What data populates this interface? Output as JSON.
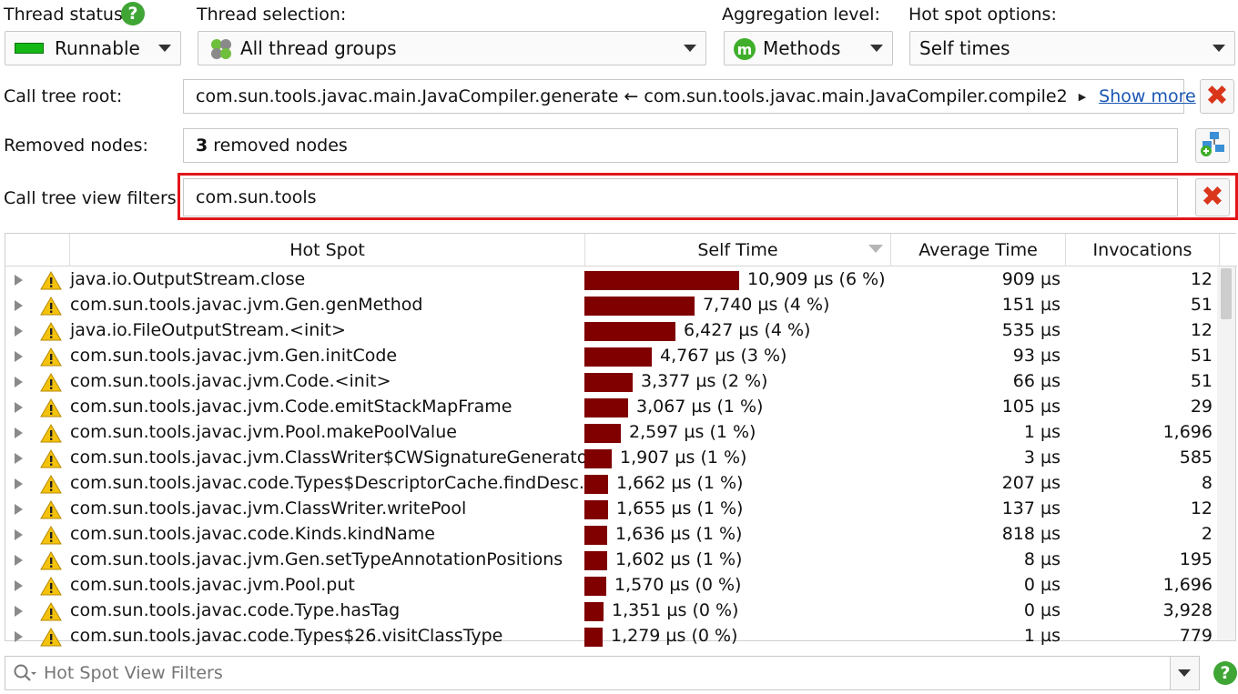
{
  "toolbar": {
    "thread_status": {
      "label": "Thread status:",
      "value": "Runnable"
    },
    "thread_selection": {
      "label": "Thread selection:",
      "value": "All thread groups"
    },
    "aggregation": {
      "label": "Aggregation level:",
      "value": "Methods"
    },
    "hotspot_options": {
      "label": "Hot spot options:",
      "value": "Self times"
    }
  },
  "call_tree_root": {
    "label": "Call tree root:",
    "value": "com.sun.tools.javac.main.JavaCompiler.generate ← com.sun.tools.javac.main.JavaCompiler.compile2",
    "show_more": "Show more"
  },
  "removed_nodes": {
    "label": "Removed nodes:",
    "count": "3",
    "suffix": "removed nodes"
  },
  "view_filters": {
    "label": "Call tree view filters:",
    "value": "com.sun.tools"
  },
  "table": {
    "columns": [
      "Hot Spot",
      "Self Time",
      "Average Time",
      "Invocations"
    ],
    "sort_column": "Self Time",
    "rows": [
      {
        "name": "java.io.OutputStream.close",
        "self_time": "10,909 µs (6 %)",
        "self_us": 10909,
        "avg": "909 µs",
        "inv": "12"
      },
      {
        "name": "com.sun.tools.javac.jvm.Gen.genMethod",
        "self_time": "7,740 µs (4 %)",
        "self_us": 7740,
        "avg": "151 µs",
        "inv": "51"
      },
      {
        "name": "java.io.FileOutputStream.<init>",
        "self_time": "6,427 µs (4 %)",
        "self_us": 6427,
        "avg": "535 µs",
        "inv": "12"
      },
      {
        "name": "com.sun.tools.javac.jvm.Gen.initCode",
        "self_time": "4,767 µs (3 %)",
        "self_us": 4767,
        "avg": "93 µs",
        "inv": "51"
      },
      {
        "name": "com.sun.tools.javac.jvm.Code.<init>",
        "self_time": "3,377 µs (2 %)",
        "self_us": 3377,
        "avg": "66 µs",
        "inv": "51"
      },
      {
        "name": "com.sun.tools.javac.jvm.Code.emitStackMapFrame",
        "self_time": "3,067 µs (1 %)",
        "self_us": 3067,
        "avg": "105 µs",
        "inv": "29"
      },
      {
        "name": "com.sun.tools.javac.jvm.Pool.makePoolValue",
        "self_time": "2,597 µs (1 %)",
        "self_us": 2597,
        "avg": "1 µs",
        "inv": "1,696"
      },
      {
        "name": "com.sun.tools.javac.jvm.ClassWriter$CWSignatureGenerato...",
        "self_time": "1,907 µs (1 %)",
        "self_us": 1907,
        "avg": "3 µs",
        "inv": "585"
      },
      {
        "name": "com.sun.tools.javac.code.Types$DescriptorCache.findDesc...",
        "self_time": "1,662 µs (1 %)",
        "self_us": 1662,
        "avg": "207 µs",
        "inv": "8"
      },
      {
        "name": "com.sun.tools.javac.jvm.ClassWriter.writePool",
        "self_time": "1,655 µs (1 %)",
        "self_us": 1655,
        "avg": "137 µs",
        "inv": "12"
      },
      {
        "name": "com.sun.tools.javac.code.Kinds.kindName",
        "self_time": "1,636 µs (1 %)",
        "self_us": 1636,
        "avg": "818 µs",
        "inv": "2"
      },
      {
        "name": "com.sun.tools.javac.jvm.Gen.setTypeAnnotationPositions",
        "self_time": "1,602 µs (1 %)",
        "self_us": 1602,
        "avg": "8 µs",
        "inv": "195"
      },
      {
        "name": "com.sun.tools.javac.jvm.Pool.put",
        "self_time": "1,570 µs (0 %)",
        "self_us": 1570,
        "avg": "0 µs",
        "inv": "1,696"
      },
      {
        "name": "com.sun.tools.javac.code.Type.hasTag",
        "self_time": "1,351 µs (0 %)",
        "self_us": 1351,
        "avg": "0 µs",
        "inv": "3,928"
      },
      {
        "name": "com.sun.tools.javac.code.Types$26.visitClassType",
        "self_time": "1,279 µs (0 %)",
        "self_us": 1279,
        "avg": "1 µs",
        "inv": "779"
      }
    ]
  },
  "bottom_filter": {
    "placeholder": "Hot Spot View Filters"
  },
  "colors": {
    "bar": "#800000",
    "highlight": "#e0161a",
    "runnable": "#14b814",
    "help": "#3fa535",
    "close": "#d9361c"
  },
  "icons": [
    "help-icon",
    "runnable-status-icon",
    "thread-groups-icon",
    "methods-icon",
    "close-icon",
    "add-removed-nodes-icon",
    "warning-icon",
    "search-icon"
  ]
}
